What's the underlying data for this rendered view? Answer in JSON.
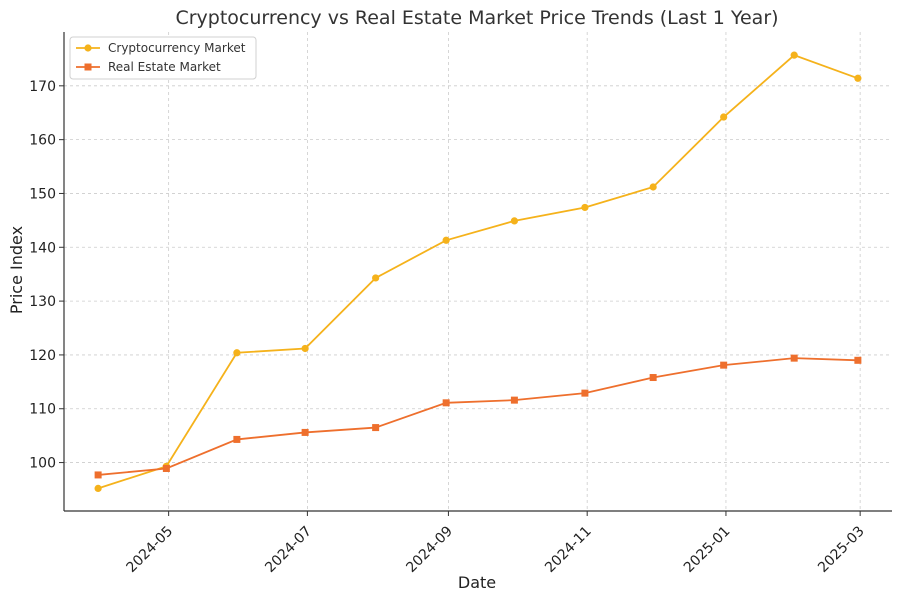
{
  "chart_data": {
    "type": "line",
    "title": "Cryptocurrency vs Real Estate Market Price Trends (Last 1 Year)",
    "xlabel": "Date",
    "ylabel": "Price Index",
    "x": [
      "2024-03-31",
      "2024-04-30",
      "2024-05-31",
      "2024-06-30",
      "2024-07-31",
      "2024-08-31",
      "2024-09-30",
      "2024-10-31",
      "2024-11-30",
      "2024-12-31",
      "2025-01-31",
      "2025-02-28"
    ],
    "series": [
      {
        "name": "Cryptocurrency Market",
        "color": "#f5b21b",
        "marker": "circle",
        "values": [
          95.2,
          99.3,
          120.4,
          121.2,
          134.3,
          141.3,
          144.9,
          147.4,
          151.2,
          164.2,
          175.7,
          171.4
        ]
      },
      {
        "name": "Real Estate Market",
        "color": "#ee6f2d",
        "marker": "square",
        "values": [
          97.7,
          98.9,
          104.3,
          105.6,
          106.5,
          111.1,
          111.6,
          112.9,
          115.8,
          118.1,
          119.4,
          119.0
        ]
      }
    ],
    "xticks": [
      "2024-05",
      "2024-07",
      "2024-09",
      "2024-11",
      "2025-01",
      "2025-03"
    ],
    "yticks": [
      100,
      110,
      120,
      130,
      140,
      150,
      160,
      170
    ],
    "xlim": [
      "2024-03-16",
      "2025-03-15"
    ],
    "ylim": [
      91,
      180
    ],
    "grid": true,
    "legend": "top-left"
  }
}
